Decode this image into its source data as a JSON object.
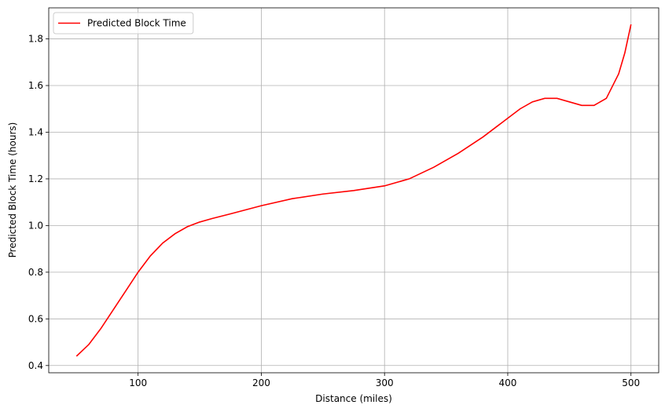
{
  "chart_data": {
    "type": "line",
    "x_label": "Distance (miles)",
    "y_label": "Predicted Block Time (hours)",
    "x": [
      50,
      60,
      70,
      80,
      90,
      100,
      110,
      120,
      130,
      140,
      150,
      160,
      175,
      200,
      225,
      250,
      275,
      300,
      320,
      340,
      360,
      380,
      400,
      410,
      420,
      430,
      440,
      450,
      460,
      470,
      480,
      490,
      495,
      500
    ],
    "series": [
      {
        "name": "Predicted Block Time",
        "color": "#ff0000",
        "values": [
          0.44,
          0.49,
          0.56,
          0.64,
          0.72,
          0.8,
          0.87,
          0.925,
          0.965,
          0.995,
          1.015,
          1.03,
          1.05,
          1.085,
          1.115,
          1.135,
          1.15,
          1.17,
          1.2,
          1.25,
          1.31,
          1.38,
          1.46,
          1.5,
          1.53,
          1.545,
          1.545,
          1.53,
          1.515,
          1.515,
          1.545,
          1.65,
          1.74,
          1.862
        ]
      }
    ],
    "xlim": [
      27.5,
      522.5
    ],
    "xticks": [
      100,
      200,
      300,
      400,
      500
    ],
    "ylim": [
      0.369,
      1.933
    ],
    "yticks": [
      {
        "value": 0.4,
        "label": "0.4"
      },
      {
        "value": 0.6,
        "label": "0.6"
      },
      {
        "value": 0.8,
        "label": "0.8"
      },
      {
        "value": 1.0,
        "label": "1.0"
      },
      {
        "value": 1.2,
        "label": "1.2"
      },
      {
        "value": 1.4,
        "label": "1.4"
      },
      {
        "value": 1.6,
        "label": "1.6"
      },
      {
        "value": 1.8,
        "label": "1.8"
      }
    ],
    "grid": true,
    "legend": "upper-left"
  }
}
